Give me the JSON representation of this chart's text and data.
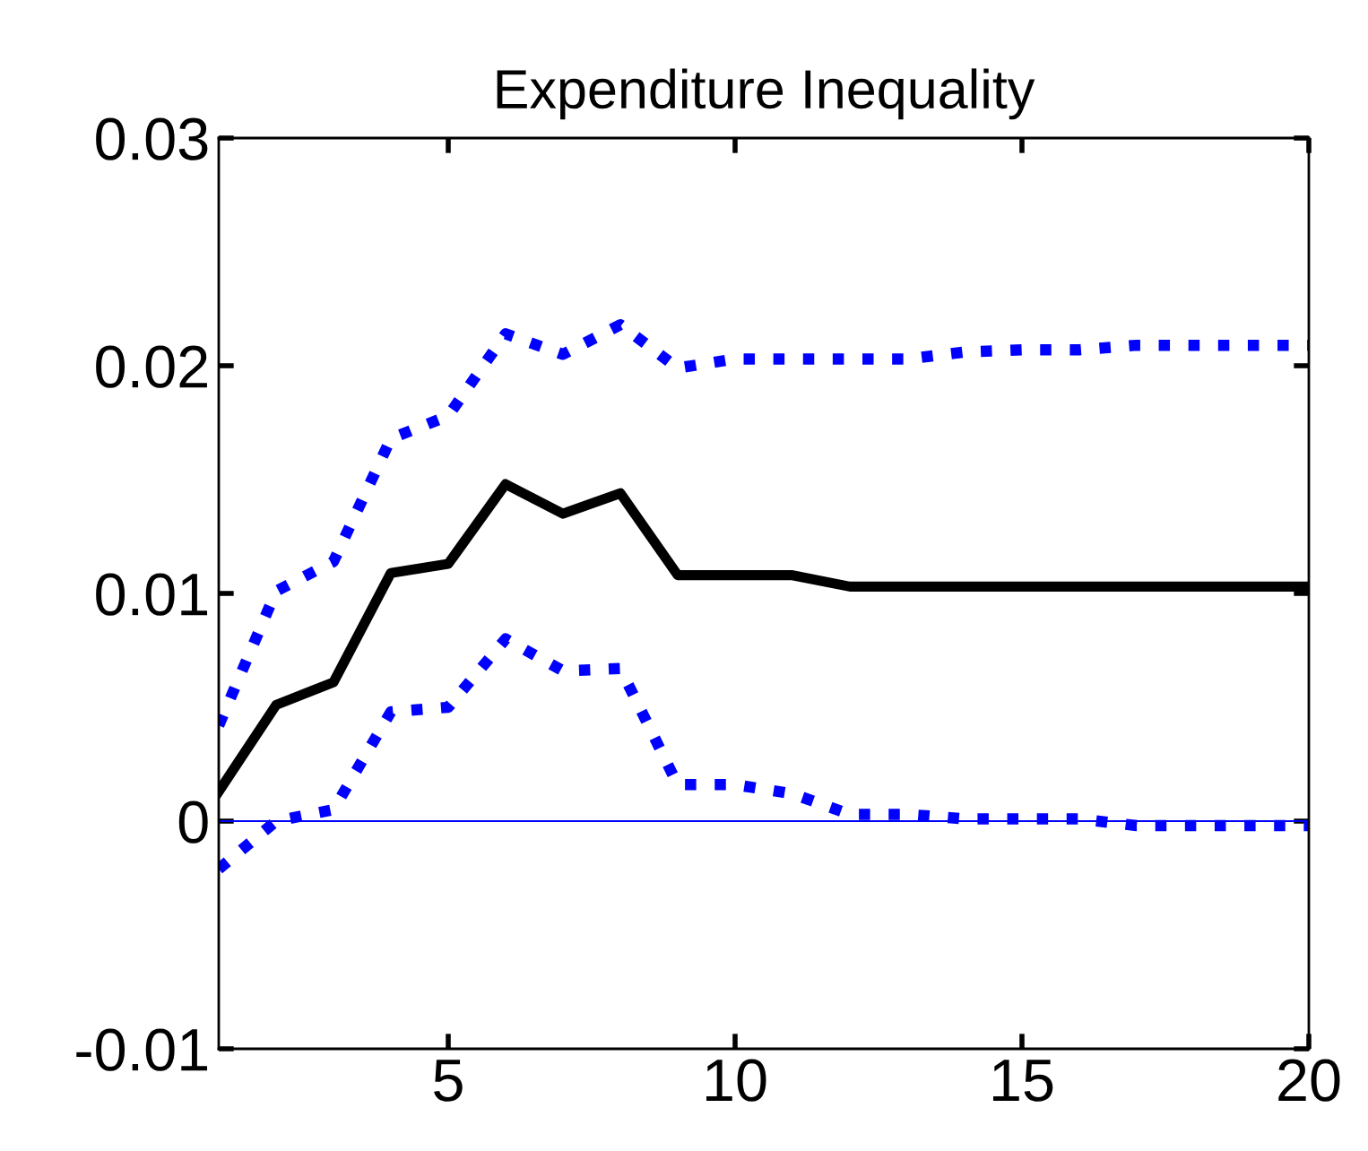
{
  "chart_data": {
    "type": "line",
    "title": "Expenditure Inequality",
    "x": [
      1,
      2,
      3,
      4,
      5,
      6,
      7,
      8,
      9,
      10,
      11,
      12,
      13,
      14,
      15,
      16,
      17,
      18,
      19,
      20
    ],
    "series": [
      {
        "color": "#000000",
        "line_style": "solid",
        "values": [
          0.0013,
          0.0051,
          0.0061,
          0.0109,
          0.0113,
          0.0148,
          0.0135,
          0.0144,
          0.0108,
          0.0108,
          0.0108,
          0.0103,
          0.0103,
          0.0103,
          0.0103,
          0.0103,
          0.0103,
          0.0103,
          0.0103,
          0.0103
        ]
      },
      {
        "color": "#0000ff",
        "line_style": "dotted",
        "values": [
          0.0042,
          0.0101,
          0.0114,
          0.0168,
          0.0178,
          0.0214,
          0.0205,
          0.0218,
          0.0199,
          0.0203,
          0.0203,
          0.0203,
          0.0203,
          0.0206,
          0.0207,
          0.0207,
          0.0209,
          0.0209,
          0.0209,
          0.0209
        ]
      },
      {
        "color": "#0000ff",
        "line_style": "dotted",
        "values": [
          -0.0021,
          0.0,
          0.0005,
          0.0048,
          0.005,
          0.008,
          0.0066,
          0.0067,
          0.0016,
          0.0016,
          0.0012,
          0.0003,
          0.0003,
          0.0001,
          0.0001,
          0.0001,
          -0.0002,
          -0.0002,
          -0.0002,
          -0.0002
        ]
      }
    ],
    "ref_lines": [
      {
        "axis": "y",
        "value": 0,
        "color": "#0000ff",
        "line_style": "solid"
      }
    ],
    "xlim": [
      1,
      20
    ],
    "xticks": [
      5,
      10,
      15,
      20
    ],
    "ylim": [
      -0.01,
      0.03
    ],
    "yticks": [
      -0.01,
      0,
      0.01,
      0.02,
      0.03
    ],
    "grid": false,
    "legend": false,
    "marker": "none"
  }
}
